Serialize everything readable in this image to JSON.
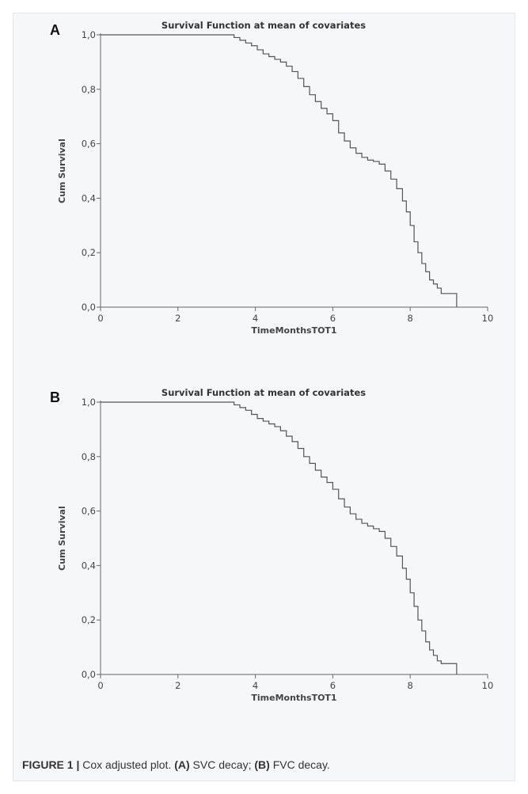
{
  "caption": {
    "label": "FIGURE 1 |",
    "text_1": " Cox adjusted plot. ",
    "a_ref": "(A)",
    "a_text": " SVC decay; ",
    "b_ref": "(B)",
    "b_text": " FVC decay."
  },
  "chart_data": [
    {
      "panel": "A",
      "type": "line",
      "step": true,
      "title": "Survival Function at mean of covariates",
      "xlabel": "TimeMonthsTOT1",
      "ylabel": "Cum Survival",
      "xlim": [
        0,
        10
      ],
      "ylim": [
        0,
        1
      ],
      "x_ticks": [
        "0",
        "2",
        "4",
        "6",
        "8",
        "10"
      ],
      "y_ticks": [
        "0,0",
        "0,2",
        "0,4",
        "0,6",
        "0,8",
        "1,0"
      ],
      "grid": false,
      "x": [
        0,
        3.45,
        3.6,
        3.75,
        3.9,
        4.05,
        4.2,
        4.35,
        4.5,
        4.65,
        4.8,
        4.95,
        5.1,
        5.25,
        5.4,
        5.55,
        5.7,
        5.85,
        6.0,
        6.15,
        6.3,
        6.45,
        6.6,
        6.75,
        6.9,
        7.05,
        7.2,
        7.35,
        7.5,
        7.65,
        7.8,
        7.9,
        8.0,
        8.1,
        8.2,
        8.3,
        8.4,
        8.5,
        8.6,
        8.7,
        8.8,
        9.2
      ],
      "y": [
        1.0,
        0.99,
        0.98,
        0.97,
        0.96,
        0.945,
        0.93,
        0.92,
        0.91,
        0.9,
        0.885,
        0.865,
        0.84,
        0.81,
        0.78,
        0.755,
        0.73,
        0.71,
        0.685,
        0.64,
        0.61,
        0.585,
        0.565,
        0.55,
        0.54,
        0.535,
        0.525,
        0.5,
        0.47,
        0.435,
        0.39,
        0.35,
        0.3,
        0.24,
        0.2,
        0.16,
        0.13,
        0.1,
        0.085,
        0.07,
        0.05,
        0.0
      ]
    },
    {
      "panel": "B",
      "type": "line",
      "step": true,
      "title": "Survival Function at mean of covariates",
      "xlabel": "TimeMonthsTOT1",
      "ylabel": "Cum Survival",
      "xlim": [
        0,
        10
      ],
      "ylim": [
        0,
        1
      ],
      "x_ticks": [
        "0",
        "2",
        "4",
        "6",
        "8",
        "10"
      ],
      "y_ticks": [
        "0,0",
        "0,2",
        "0,4",
        "0,6",
        "0,8",
        "1,0"
      ],
      "grid": false,
      "x": [
        0,
        3.45,
        3.6,
        3.75,
        3.9,
        4.05,
        4.2,
        4.35,
        4.5,
        4.65,
        4.8,
        4.95,
        5.1,
        5.25,
        5.4,
        5.55,
        5.7,
        5.85,
        6.0,
        6.15,
        6.3,
        6.45,
        6.6,
        6.75,
        6.9,
        7.05,
        7.2,
        7.35,
        7.5,
        7.65,
        7.8,
        7.9,
        8.0,
        8.1,
        8.2,
        8.3,
        8.4,
        8.5,
        8.6,
        8.7,
        8.8,
        9.2
      ],
      "y": [
        1.0,
        0.99,
        0.98,
        0.97,
        0.955,
        0.94,
        0.93,
        0.92,
        0.91,
        0.895,
        0.875,
        0.855,
        0.83,
        0.8,
        0.775,
        0.75,
        0.725,
        0.705,
        0.68,
        0.645,
        0.615,
        0.59,
        0.57,
        0.555,
        0.545,
        0.535,
        0.525,
        0.5,
        0.47,
        0.435,
        0.39,
        0.35,
        0.3,
        0.25,
        0.2,
        0.16,
        0.12,
        0.09,
        0.07,
        0.05,
        0.04,
        0.0
      ]
    }
  ]
}
